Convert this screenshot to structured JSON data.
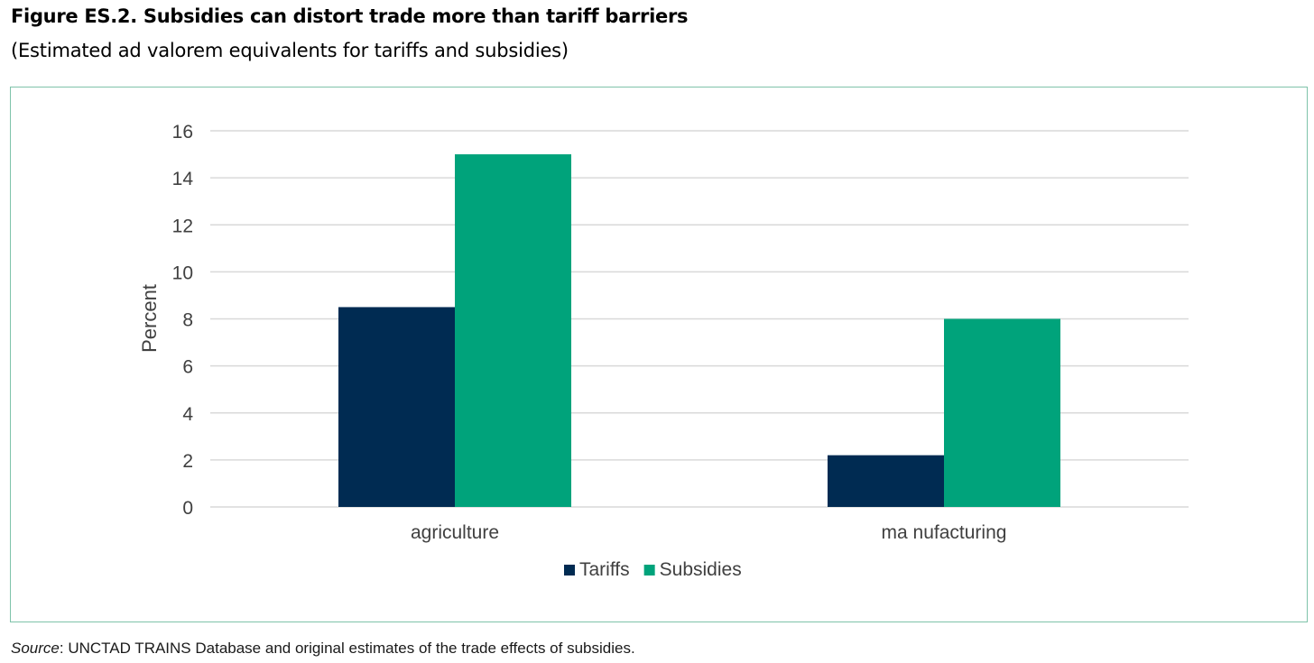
{
  "figure": {
    "title": "Figure ES.2. Subsidies can distort trade more than tariff barriers",
    "subtitle": "(Estimated ad valorem equivalents for tariffs and subsidies)",
    "source_label": "Source",
    "source_text": ": UNCTAD TRAINS Database and original estimates of the trade effects of subsidies."
  },
  "colors": {
    "tariffs": "#002b52",
    "subsidies": "#00a37b",
    "grid": "#d9d9d9",
    "frame": "#7fc3aa"
  },
  "chart_data": {
    "type": "bar",
    "title": "",
    "xlabel": "",
    "ylabel": "Percent",
    "categories": [
      "agriculture",
      "ma nufacturing"
    ],
    "series": [
      {
        "name": "Tariffs",
        "values": [
          8.5,
          2.2
        ]
      },
      {
        "name": "Subsidies",
        "values": [
          15,
          8
        ]
      }
    ],
    "ylim": [
      0,
      16
    ],
    "yticks": [
      0,
      2,
      4,
      6,
      8,
      10,
      12,
      14,
      16
    ],
    "grid": true,
    "legend": "bottom-center"
  }
}
